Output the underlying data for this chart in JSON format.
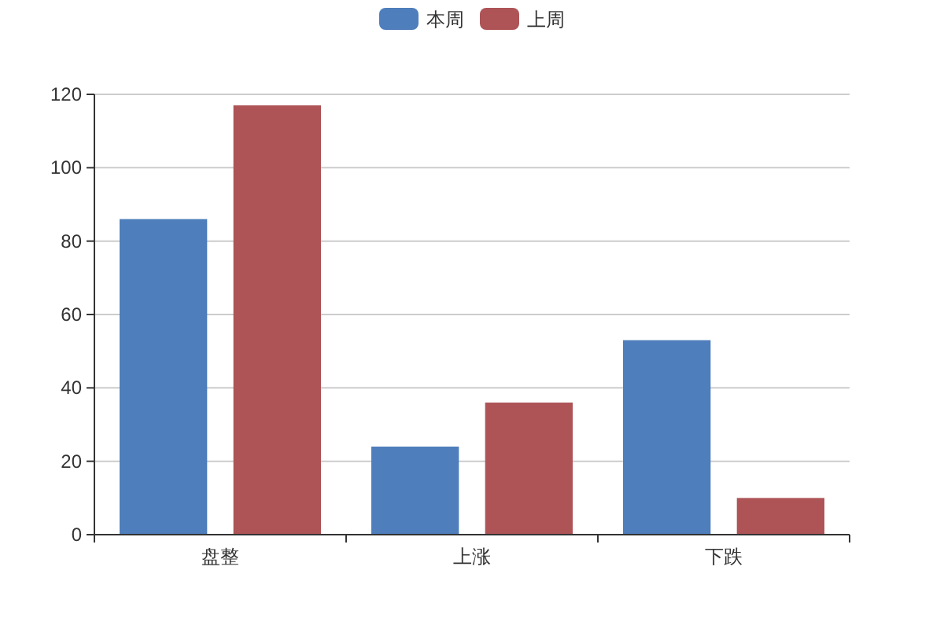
{
  "chart_data": {
    "type": "bar",
    "categories": [
      "盘整",
      "上涨",
      "下跌"
    ],
    "series": [
      {
        "name": "本周",
        "color": "#4e7ebb",
        "values": [
          86,
          24,
          53
        ]
      },
      {
        "name": "上周",
        "color": "#ae5457",
        "values": [
          117,
          36,
          10
        ]
      }
    ],
    "ylim": [
      0,
      120
    ],
    "yticks": [
      0,
      20,
      40,
      60,
      80,
      100,
      120
    ],
    "grid": "y",
    "legend": "top"
  }
}
